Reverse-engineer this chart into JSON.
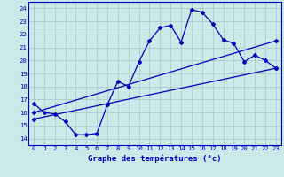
{
  "xlabel": "Graphe des températures (°c)",
  "bg_color": "#cce8e8",
  "grid_color": "#aacccc",
  "line_color": "#0000bb",
  "spine_color": "#0000bb",
  "xlim": [
    -0.5,
    23.5
  ],
  "ylim": [
    13.5,
    24.5
  ],
  "xticks": [
    0,
    1,
    2,
    3,
    4,
    5,
    6,
    7,
    8,
    9,
    10,
    11,
    12,
    13,
    14,
    15,
    16,
    17,
    18,
    19,
    20,
    21,
    22,
    23
  ],
  "yticks": [
    14,
    15,
    16,
    17,
    18,
    19,
    20,
    21,
    22,
    23,
    24
  ],
  "tick_fontsize": 5.2,
  "xlabel_fontsize": 6.5,
  "curve1_x": [
    0,
    1,
    2,
    3,
    4,
    5,
    6,
    7,
    8,
    9,
    10,
    11,
    12,
    13,
    14,
    15,
    16,
    17,
    18,
    19,
    20,
    21,
    22,
    23
  ],
  "curve1_y": [
    16.7,
    16.0,
    15.9,
    15.3,
    14.3,
    14.3,
    14.4,
    16.6,
    18.4,
    18.0,
    19.9,
    21.5,
    22.5,
    22.7,
    21.4,
    23.9,
    23.7,
    22.8,
    21.6,
    21.3,
    19.9,
    20.4,
    20.0,
    19.4
  ],
  "line2_x": [
    0,
    23
  ],
  "line2_y": [
    16.0,
    21.5
  ],
  "line3_x": [
    0,
    23
  ],
  "line3_y": [
    15.5,
    19.4
  ],
  "lw": 0.9,
  "ms": 2.0
}
